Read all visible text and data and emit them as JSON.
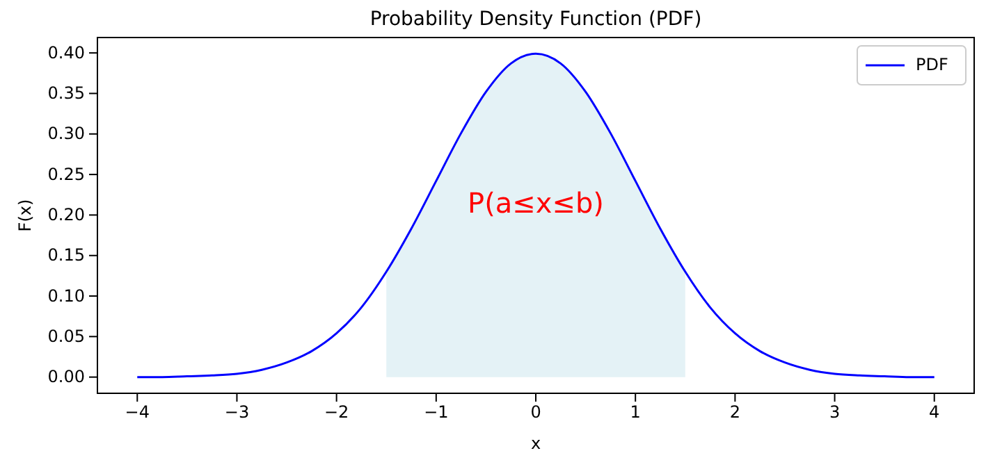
{
  "chart_data": {
    "type": "line",
    "title": "Probability Density Function (PDF)",
    "xlabel": "x",
    "ylabel": "F(x)",
    "xlim": [
      -4.4,
      4.4
    ],
    "xticks": [
      {
        "value": -4,
        "label": "−4"
      },
      {
        "value": -3,
        "label": "−3"
      },
      {
        "value": -2,
        "label": "−2"
      },
      {
        "value": -1,
        "label": "−1"
      },
      0,
      1,
      2,
      3,
      4
    ],
    "ylim": [
      -0.02,
      0.419
    ],
    "yticks": [
      {
        "value": 0,
        "label": "0.00"
      },
      {
        "value": 0.05,
        "label": "0.05"
      },
      {
        "value": 0.1,
        "label": "0.10"
      },
      {
        "value": 0.15,
        "label": "0.15"
      },
      {
        "value": 0.2,
        "label": "0.20"
      },
      {
        "value": 0.25,
        "label": "0.25"
      },
      {
        "value": 0.3,
        "label": "0.30"
      },
      {
        "value": 0.35,
        "label": "0.35"
      },
      {
        "value": 0.4,
        "label": "0.40"
      }
    ],
    "series": [
      {
        "type": "area",
        "color": "#e4f2f6",
        "x": [
          -1.5,
          -1.25,
          -1,
          -0.75,
          -0.5,
          -0.25,
          0,
          0.25,
          0.5,
          0.75,
          1,
          1.25,
          1.5
        ],
        "values": [
          0.13,
          0.183,
          0.242,
          0.301,
          0.352,
          0.387,
          0.399,
          0.387,
          0.352,
          0.301,
          0.242,
          0.183,
          0.13
        ]
      },
      {
        "name": "PDF",
        "color": "#0000ff",
        "x": [
          -4,
          -3.75,
          -3.5,
          -3.25,
          -3,
          -2.75,
          -2.5,
          -2.25,
          -2,
          -1.75,
          -1.5,
          -1.25,
          -1,
          -0.75,
          -0.5,
          -0.25,
          0,
          0.25,
          0.5,
          0.75,
          1,
          1.25,
          1.5,
          1.75,
          2,
          2.25,
          2.5,
          2.75,
          3,
          3.25,
          3.5,
          3.75,
          4
        ],
        "values": [
          0,
          0,
          0.001,
          0.002,
          0.004,
          0.009,
          0.018,
          0.032,
          0.054,
          0.086,
          0.13,
          0.183,
          0.242,
          0.301,
          0.352,
          0.387,
          0.399,
          0.387,
          0.352,
          0.301,
          0.242,
          0.183,
          0.13,
          0.086,
          0.054,
          0.032,
          0.018,
          0.009,
          0.004,
          0.002,
          0.001,
          0,
          0
        ]
      }
    ],
    "annotations": [
      "P(a≤x≤b)"
    ],
    "legend": "top right",
    "line_style": "solid"
  }
}
